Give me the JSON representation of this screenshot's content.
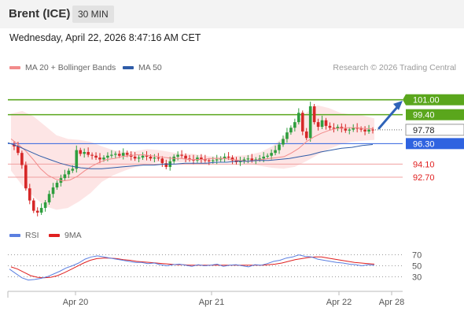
{
  "header": {
    "symbol": "Brent (ICE)",
    "interval": "30 MIN",
    "datetime": "Wednesday, April 22, 2026 8:47:16 AM CET"
  },
  "credit": "Research © 2026 Trading Central",
  "colors": {
    "support": "#f0a0a0",
    "support_label": "#e02020",
    "resistance": "#5aa61c",
    "pivot": "#2f63e0",
    "candle_up": "#2e9e3e",
    "candle_down": "#d62828",
    "bollinger_fill": "#fde0e0",
    "ma20": "#f28b8b",
    "ma50": "#2f5ca8",
    "rsi": "#5b7fe0",
    "rsi_ma": "#e02020",
    "arrow": "#2f63b8"
  },
  "legend": {
    "ma20_label": "MA 20 + Bollinger Bands",
    "ma50_label": "MA 50",
    "rsi_label": "RSI",
    "rsi_ma_label": "9MA"
  },
  "chart_data": {
    "type": "candlestick",
    "ylim": [
      87.8,
      103.0
    ],
    "last_price": 97.78,
    "x_ticks": [
      "Apr 20",
      "Apr 21",
      "Apr 22",
      "Apr 28"
    ],
    "levels": [
      {
        "value": 101.0,
        "label": "101.00",
        "kind": "resistance"
      },
      {
        "value": 99.4,
        "label": "99.40",
        "kind": "resistance"
      },
      {
        "value": 97.78,
        "label": "97.78",
        "kind": "last"
      },
      {
        "value": 96.3,
        "label": "96.30",
        "kind": "pivot"
      },
      {
        "value": 94.1,
        "label": "94.10",
        "kind": "support"
      },
      {
        "value": 92.7,
        "label": "92.70",
        "kind": "support"
      }
    ],
    "close_path": [
      96.2,
      96.0,
      95.3,
      94.0,
      91.5,
      90.2,
      89.1,
      88.9,
      89.4,
      90.0,
      90.9,
      91.6,
      92.1,
      92.6,
      93.0,
      93.4,
      93.6,
      95.6,
      95.2,
      95.4,
      95.1,
      95.0,
      94.8,
      94.6,
      94.8,
      95.0,
      95.1,
      95.2,
      95.0,
      95.3,
      95.1,
      94.9,
      94.7,
      94.8,
      95.0,
      94.9,
      94.7,
      94.8,
      94.7,
      94.2,
      93.8,
      94.4,
      94.9,
      95.1,
      95.0,
      94.7,
      94.6,
      94.5,
      94.8,
      94.6,
      94.5,
      94.4,
      94.5,
      94.6,
      94.7,
      94.9,
      94.8,
      94.5,
      94.3,
      94.4,
      94.6,
      94.7,
      94.5,
      94.6,
      94.7,
      94.9,
      95.0,
      95.3,
      95.6,
      96.2,
      96.8,
      97.5,
      98.0,
      98.6,
      99.6,
      97.6,
      96.9,
      100.3,
      98.6,
      98.1,
      98.8,
      98.2,
      98.0,
      97.9,
      98.1,
      97.9,
      97.7,
      97.8,
      98.0,
      97.9,
      97.8,
      97.6,
      97.8,
      97.78
    ],
    "ma20_path": [
      96.8,
      96.2,
      95.5,
      94.6,
      93.6,
      92.9,
      92.5,
      92.3,
      92.4,
      92.8,
      93.4,
      93.9,
      94.3,
      94.6,
      94.7,
      94.9,
      95.0,
      95.1,
      95.1,
      95.0,
      94.9,
      94.8,
      94.7,
      94.7,
      94.6,
      94.6,
      94.6,
      94.7,
      94.7,
      94.7,
      94.6,
      94.5,
      94.4,
      94.5,
      94.6,
      94.7,
      94.8,
      94.9,
      95.3,
      95.8,
      96.5,
      97.0,
      97.4,
      97.7,
      97.9,
      98.0,
      98.0,
      98.0,
      97.9,
      97.9
    ],
    "ma50_path": [
      96.4,
      96.0,
      95.5,
      95.0,
      94.6,
      94.2,
      93.9,
      93.7,
      93.6,
      93.6,
      93.7,
      93.8,
      93.9,
      94.0,
      94.0,
      94.1,
      94.1,
      94.2,
      94.2,
      94.2,
      94.3,
      94.3,
      94.4,
      94.4,
      94.5,
      94.5,
      94.6,
      94.7,
      94.9,
      95.1,
      95.4,
      95.6,
      95.8,
      95.9,
      96.1,
      96.2
    ],
    "bb_upper_path": [
      99.5,
      99.8,
      99.2,
      98.2,
      97.2,
      96.8,
      96.7,
      96.5,
      96.0,
      95.6,
      95.4,
      95.5,
      95.7,
      95.6,
      95.4,
      95.2,
      95.2,
      95.0,
      94.9,
      94.9,
      95.0,
      95.1,
      95.4,
      96.0,
      97.0,
      98.4,
      99.6,
      100.4,
      100.1,
      99.6,
      99.4,
      99.3,
      99.0
    ],
    "bb_lower_path": [
      93.4,
      91.8,
      90.6,
      89.6,
      89.2,
      89.4,
      90.1,
      91.0,
      92.2,
      92.9,
      93.4,
      93.8,
      94.1,
      94.3,
      94.3,
      94.3,
      94.4,
      94.3,
      94.4,
      94.4,
      94.3,
      94.1,
      93.9,
      93.7,
      93.6,
      93.8,
      94.4,
      95.1,
      95.7,
      96.2,
      96.5,
      96.6,
      96.7
    ],
    "rsi_panel": {
      "ylim": [
        12,
        88
      ],
      "ticks": [
        70,
        50,
        30
      ],
      "rsi_path": [
        44,
        36,
        28,
        24,
        25,
        27,
        30,
        35,
        40,
        46,
        50,
        55,
        62,
        66,
        68,
        66,
        64,
        62,
        60,
        58,
        56,
        56,
        54,
        55,
        52,
        50,
        52,
        53,
        51,
        49,
        52,
        50,
        51,
        53,
        49,
        51,
        52,
        50,
        48,
        52,
        51,
        54,
        58,
        60,
        64,
        66,
        70,
        67,
        66,
        62,
        60,
        58,
        56,
        55,
        53,
        52,
        50,
        52,
        51
      ],
      "ma_path": [
        48,
        44,
        38,
        32,
        29,
        28,
        29,
        32,
        37,
        43,
        49,
        55,
        60,
        63,
        64,
        64,
        63,
        61,
        60,
        58,
        57,
        56,
        55,
        54,
        53,
        52,
        52,
        51,
        51,
        51,
        51,
        51,
        51,
        51,
        51,
        51,
        51,
        51,
        51,
        52,
        53,
        55,
        58,
        61,
        63,
        65,
        66,
        66,
        64,
        62,
        60,
        58,
        56,
        55,
        54,
        53
      ]
    }
  }
}
